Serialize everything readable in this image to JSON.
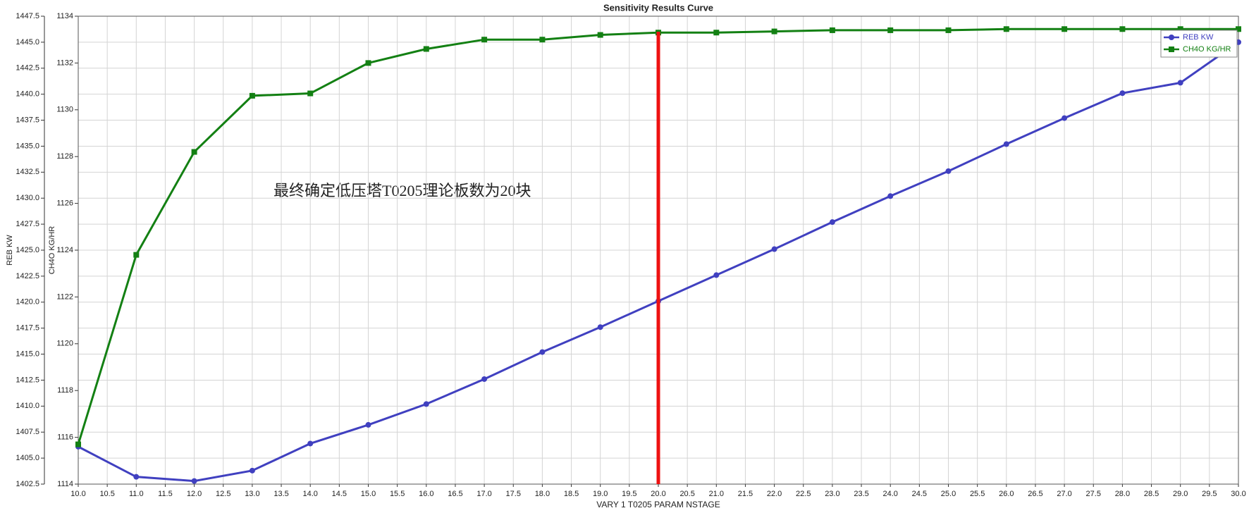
{
  "chart_data": {
    "type": "line",
    "title": "Sensitivity Results Curve",
    "x_label": "VARY   1 T0205 PARAM NSTAGE",
    "y_label": "REB KW",
    "y2_label": "CH4O KG/HR",
    "annotation": "最终确定低压塔T0205理论板数为20块",
    "vline": {
      "x": 20,
      "color": "#ee1111"
    },
    "grid": true,
    "legend": "top-right",
    "x": [
      10,
      11,
      12,
      13,
      14,
      15,
      16,
      17,
      18,
      19,
      20,
      21,
      22,
      23,
      24,
      25,
      26,
      27,
      28,
      29,
      30
    ],
    "series": [
      {
        "name": "REB KW",
        "color": "#4040c0",
        "marker": "circle",
        "axis": "y",
        "values": [
          1406.1,
          1403.2,
          1402.8,
          1403.8,
          1406.4,
          1408.2,
          1410.2,
          1412.6,
          1415.2,
          1417.6,
          1420.1,
          1422.6,
          1425.1,
          1427.7,
          1430.2,
          1432.6,
          1435.2,
          1437.7,
          1440.1,
          1441.1,
          1445.0
        ]
      },
      {
        "name": "CH4O KG/HR",
        "color": "#138013",
        "marker": "square",
        "axis": "y2",
        "values": [
          1115.7,
          1123.8,
          1128.2,
          1130.6,
          1130.7,
          1132.0,
          1132.6,
          1133.0,
          1133.0,
          1133.2,
          1133.3,
          1133.3,
          1133.35,
          1133.4,
          1133.4,
          1133.4,
          1133.45,
          1133.45,
          1133.45,
          1133.45,
          1133.45
        ]
      }
    ],
    "xlim": [
      10,
      30
    ],
    "xticks": [
      {
        "value": 10,
        "label": "10.0"
      },
      10.5,
      {
        "value": 11,
        "label": "11.0"
      },
      11.5,
      {
        "value": 12,
        "label": "12.0"
      },
      12.5,
      {
        "value": 13,
        "label": "13.0"
      },
      13.5,
      {
        "value": 14,
        "label": "14.0"
      },
      14.5,
      {
        "value": 15,
        "label": "15.0"
      },
      15.5,
      {
        "value": 16,
        "label": "16.0"
      },
      16.5,
      {
        "value": 17,
        "label": "17.0"
      },
      17.5,
      {
        "value": 18,
        "label": "18.0"
      },
      18.5,
      {
        "value": 19,
        "label": "19.0"
      },
      19.5,
      {
        "value": 20,
        "label": "20.0"
      },
      20.5,
      {
        "value": 21,
        "label": "21.0"
      },
      21.5,
      {
        "value": 22,
        "label": "22.0"
      },
      22.5,
      {
        "value": 23,
        "label": "23.0"
      },
      23.5,
      {
        "value": 24,
        "label": "24.0"
      },
      24.5,
      {
        "value": 25,
        "label": "25.0"
      },
      25.5,
      {
        "value": 26,
        "label": "26.0"
      },
      26.5,
      {
        "value": 27,
        "label": "27.0"
      },
      27.5,
      {
        "value": 28,
        "label": "28.0"
      },
      28.5,
      {
        "value": 29,
        "label": "29.0"
      },
      29.5,
      {
        "value": 30,
        "label": "30.0"
      }
    ],
    "ylim": [
      1402.5,
      1447.5
    ],
    "yticks": [
      1402.5,
      {
        "value": 1405,
        "label": "1405.0"
      },
      1407.5,
      {
        "value": 1410,
        "label": "1410.0"
      },
      1412.5,
      {
        "value": 1415,
        "label": "1415.0"
      },
      1417.5,
      {
        "value": 1420,
        "label": "1420.0"
      },
      1422.5,
      {
        "value": 1425,
        "label": "1425.0"
      },
      1427.5,
      {
        "value": 1430,
        "label": "1430.0"
      },
      1432.5,
      {
        "value": 1435,
        "label": "1435.0"
      },
      1437.5,
      {
        "value": 1440,
        "label": "1440.0"
      },
      1442.5,
      {
        "value": 1445,
        "label": "1445.0"
      },
      1447.5
    ],
    "y2lim": [
      1114,
      1134
    ],
    "y2ticks": [
      1114,
      1116,
      1118,
      1120,
      1122,
      1124,
      1126,
      1128,
      1130,
      1132,
      1134
    ]
  }
}
